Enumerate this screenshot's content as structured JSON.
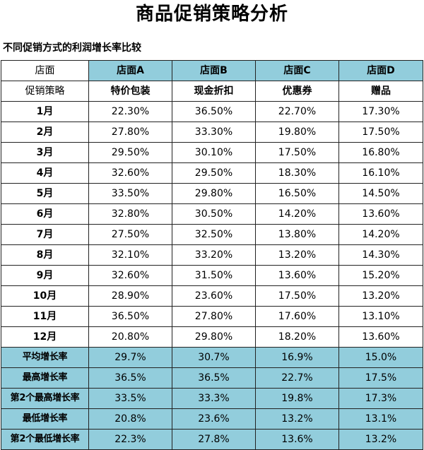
{
  "title": "商品促销策略分析",
  "subtitle": "不同促销方式的利润增长率比较",
  "header": {
    "row1_label": "店面",
    "row2_label": "促销策略",
    "stores": [
      "店面A",
      "店面B",
      "店面C",
      "店面D"
    ],
    "strategies": [
      "特价包装",
      "现金折扣",
      "优惠券",
      "赠品"
    ]
  },
  "rows": [
    {
      "label": "1月",
      "values": [
        "22.30%",
        "36.50%",
        "22.70%",
        "17.30%"
      ]
    },
    {
      "label": "2月",
      "values": [
        "27.80%",
        "33.30%",
        "19.80%",
        "17.50%"
      ]
    },
    {
      "label": "3月",
      "values": [
        "29.50%",
        "30.10%",
        "17.50%",
        "16.80%"
      ]
    },
    {
      "label": "4月",
      "values": [
        "32.60%",
        "29.50%",
        "18.30%",
        "16.10%"
      ]
    },
    {
      "label": "5月",
      "values": [
        "33.50%",
        "29.80%",
        "16.50%",
        "14.50%"
      ]
    },
    {
      "label": "6月",
      "values": [
        "32.80%",
        "30.50%",
        "14.20%",
        "13.60%"
      ]
    },
    {
      "label": "7月",
      "values": [
        "27.50%",
        "32.50%",
        "13.80%",
        "14.20%"
      ]
    },
    {
      "label": "8月",
      "values": [
        "32.10%",
        "33.20%",
        "13.20%",
        "14.30%"
      ]
    },
    {
      "label": "9月",
      "values": [
        "32.60%",
        "31.50%",
        "13.60%",
        "15.20%"
      ]
    },
    {
      "label": "10月",
      "values": [
        "28.90%",
        "23.60%",
        "17.50%",
        "13.20%"
      ]
    },
    {
      "label": "11月",
      "values": [
        "36.50%",
        "27.80%",
        "17.60%",
        "13.10%"
      ]
    },
    {
      "label": "12月",
      "values": [
        "20.80%",
        "29.80%",
        "18.20%",
        "13.60%"
      ]
    }
  ],
  "summary": [
    {
      "label": "平均增长率",
      "values": [
        "29.7%",
        "30.7%",
        "16.9%",
        "15.0%"
      ]
    },
    {
      "label": "最高增长率",
      "values": [
        "36.5%",
        "36.5%",
        "22.7%",
        "17.5%"
      ]
    },
    {
      "label": "第2个最高增长率",
      "values": [
        "33.5%",
        "33.3%",
        "19.8%",
        "17.3%"
      ]
    },
    {
      "label": "最低增长率",
      "values": [
        "20.8%",
        "23.6%",
        "13.2%",
        "13.1%"
      ]
    },
    {
      "label": "第2个最低增长率",
      "values": [
        "22.3%",
        "27.8%",
        "13.6%",
        "13.2%"
      ]
    }
  ],
  "colors": {
    "header_fill": "#92cddc",
    "summary_fill": "#92cddc",
    "border": "#222222"
  }
}
